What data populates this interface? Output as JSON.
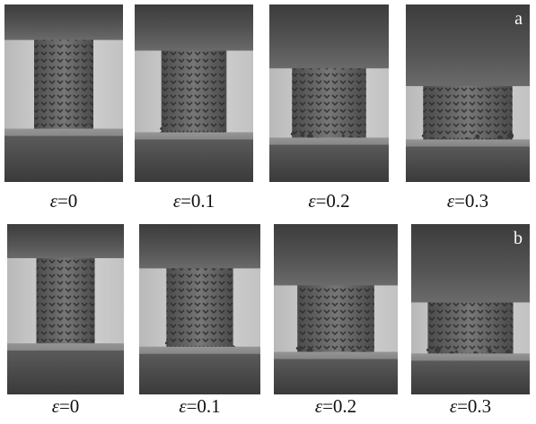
{
  "panels": [
    {
      "label": "a",
      "captions": [
        {
          "symbol": "ε",
          "text": "=0"
        },
        {
          "symbol": "ε",
          "text": "=0.1"
        },
        {
          "symbol": "ε",
          "text": "=0.2"
        },
        {
          "symbol": "ε",
          "text": "=0.3"
        }
      ]
    },
    {
      "label": "b",
      "captions": [
        {
          "symbol": "ε",
          "text": "=0"
        },
        {
          "symbol": "ε",
          "text": "=0.1"
        },
        {
          "symbol": "ε",
          "text": "=0.2"
        },
        {
          "symbol": "ε",
          "text": "=0.3"
        }
      ]
    }
  ]
}
